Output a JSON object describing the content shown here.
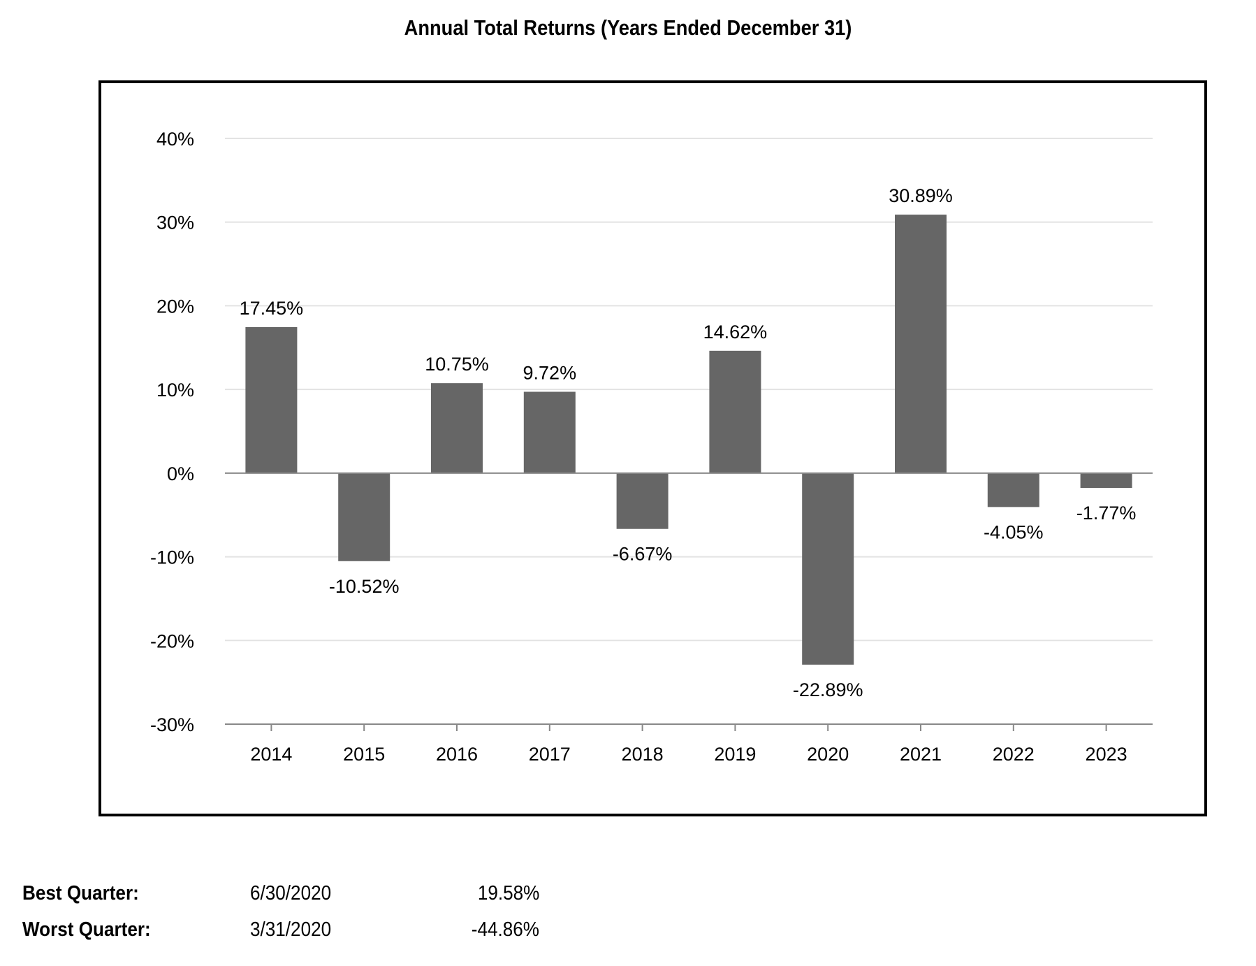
{
  "title": "Annual Total Returns (Years Ended December 31)",
  "chart_data": {
    "type": "bar",
    "title": "Annual Total Returns (Years Ended December 31)",
    "categories": [
      "2014",
      "2015",
      "2016",
      "2017",
      "2018",
      "2019",
      "2020",
      "2021",
      "2022",
      "2023"
    ],
    "values": [
      17.45,
      -10.52,
      10.75,
      9.72,
      -6.67,
      14.62,
      -22.89,
      30.89,
      -4.05,
      -1.77
    ],
    "value_labels": [
      "17.45%",
      "-10.52%",
      "10.75%",
      "9.72%",
      "-6.67%",
      "14.62%",
      "-22.89%",
      "30.89%",
      "-4.05%",
      "-1.77%"
    ],
    "y_ticks": [
      40,
      30,
      20,
      10,
      0,
      -10,
      -20,
      -30
    ],
    "y_tick_labels": [
      "40%",
      "30%",
      "20%",
      "10%",
      "0%",
      "-10%",
      "-20%",
      "-30%"
    ],
    "ylim": [
      -30,
      40
    ],
    "xlabel": "",
    "ylabel": "",
    "grid": true,
    "bar_color": "#666666",
    "grid_color": "#e3e3e3",
    "axis_color": "#888888"
  },
  "summary": {
    "best": {
      "label": "Best Quarter:",
      "date": "6/30/2020",
      "value": "19.58%"
    },
    "worst": {
      "label": "Worst Quarter:",
      "date": "3/31/2020",
      "value": "-44.86%"
    }
  }
}
